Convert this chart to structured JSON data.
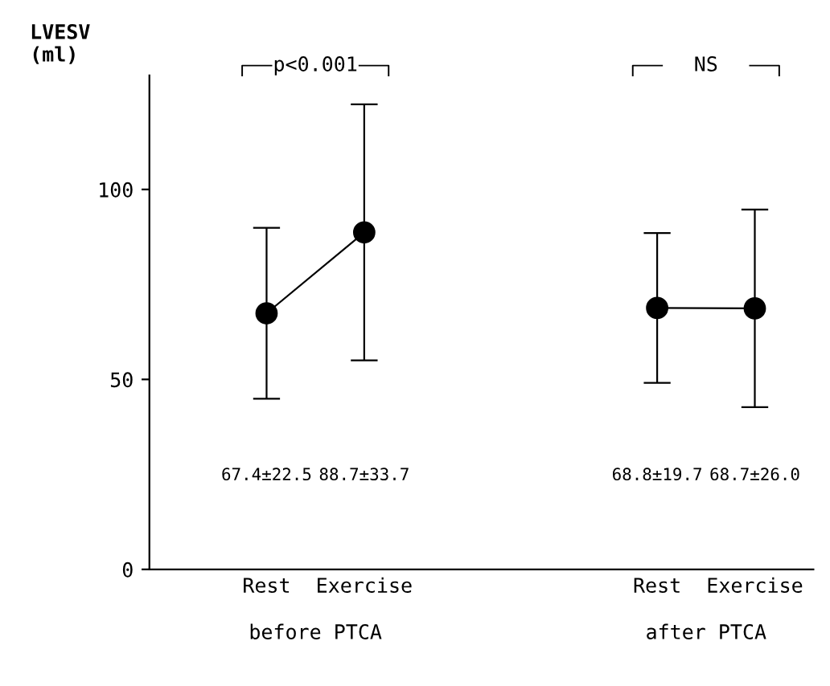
{
  "chart_data": {
    "type": "line",
    "ylabel": "LVESV\n(ml)",
    "categories": [
      "Rest",
      "Exercise",
      null,
      null,
      "Rest",
      "Exercise"
    ],
    "series": [
      {
        "color": "#000000",
        "values": [
          67.4,
          88.7,
          null,
          null,
          68.8,
          68.7
        ],
        "errors": [
          22.5,
          33.7,
          null,
          null,
          19.7,
          26.0
        ]
      }
    ],
    "ylim": [
      0,
      130
    ],
    "yticks": [
      0,
      50,
      100
    ],
    "marker": "circle",
    "line_style": "solid",
    "grid": false,
    "legend": false,
    "annotations": [
      "p<0.001",
      "NS",
      "before PTCA",
      "after PTCA",
      "67.4±22.5",
      "88.7±33.7",
      "68.8±19.7",
      "68.7±26.0"
    ]
  }
}
